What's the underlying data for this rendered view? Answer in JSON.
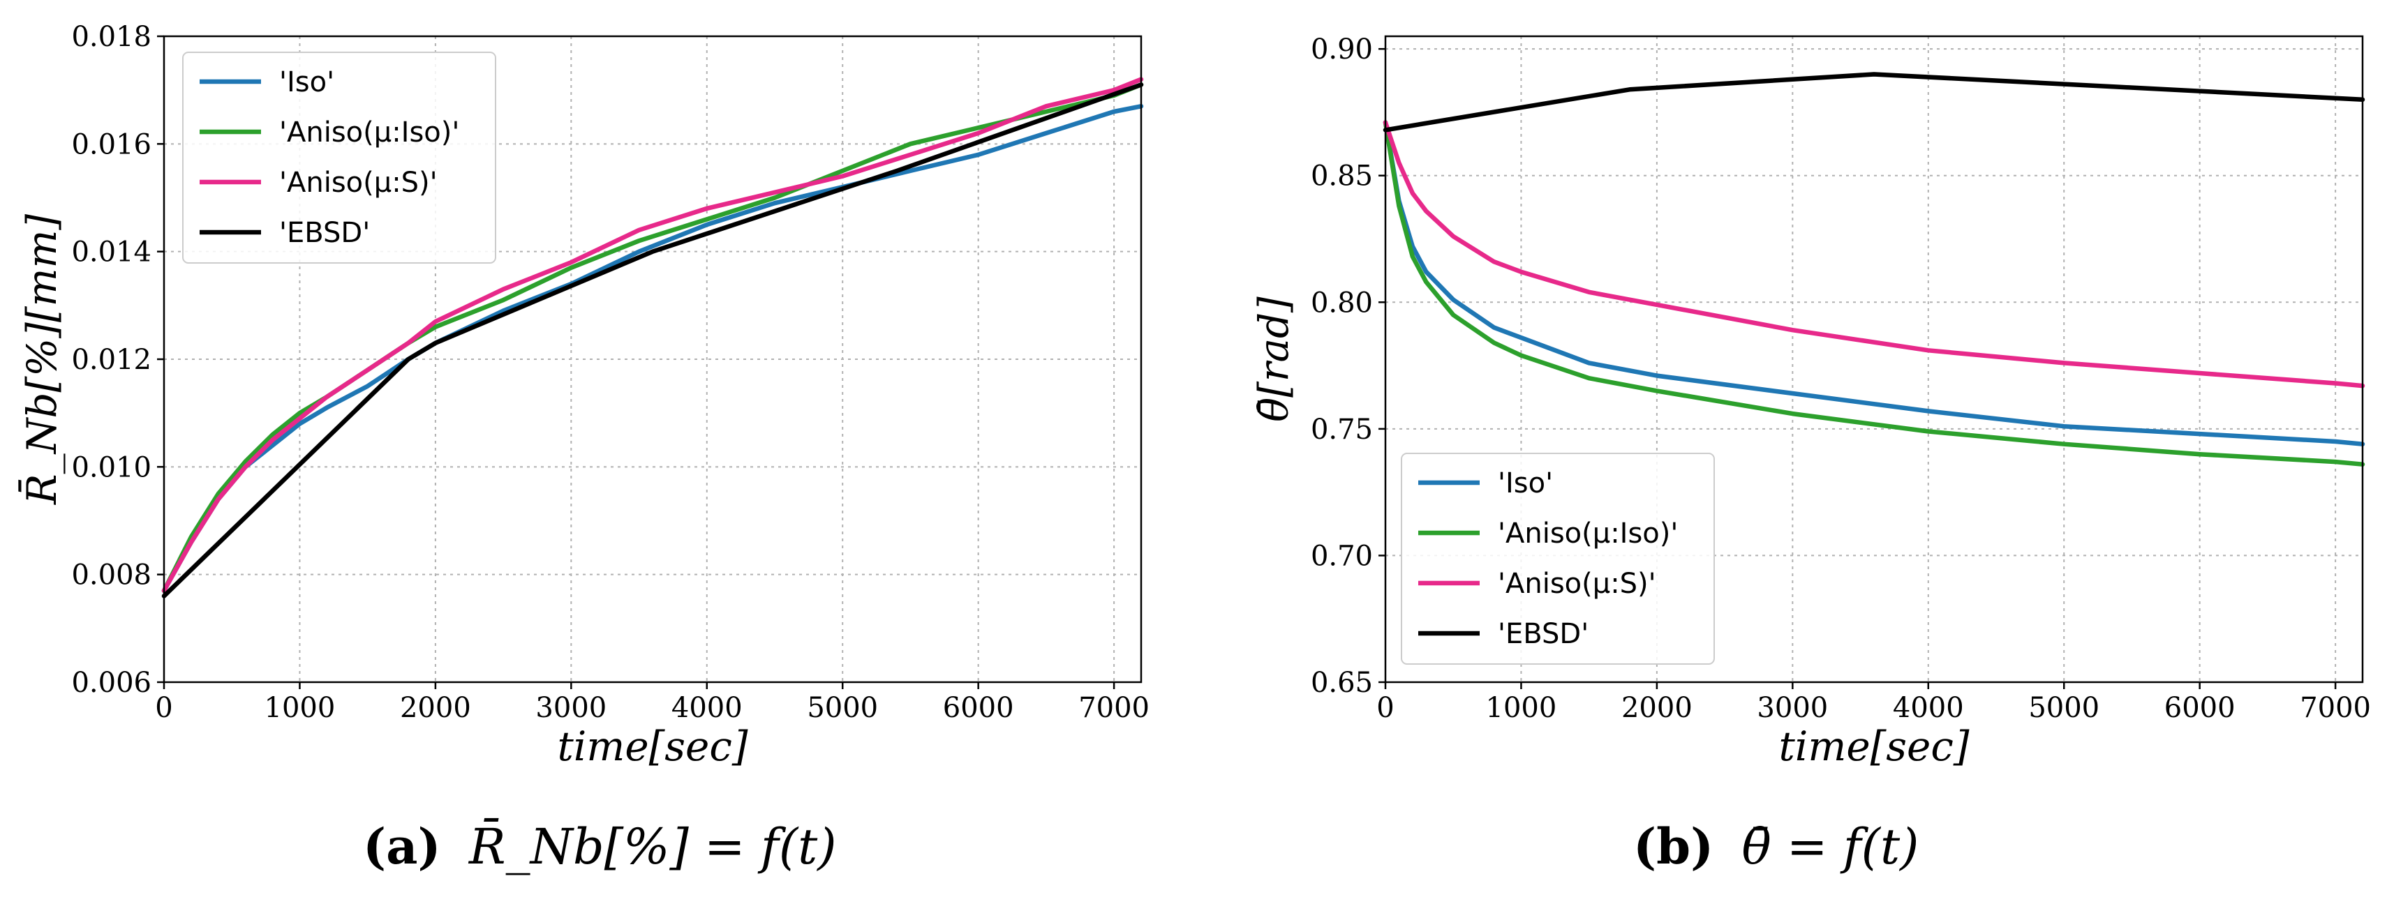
{
  "chart_data": [
    {
      "type": "line",
      "caption_label": "(a)",
      "caption_formula": "R̄_Nb[%] = f(t)",
      "xlabel": "time[sec]",
      "ylabel": "R̄_Nb[%][mm]",
      "xlim": [
        0,
        7200
      ],
      "ylim": [
        0.006,
        0.018
      ],
      "xticks": [
        0,
        1000,
        2000,
        3000,
        4000,
        5000,
        6000,
        7000
      ],
      "yticks": [
        0.006,
        0.008,
        0.01,
        0.012,
        0.014,
        0.016,
        0.018
      ],
      "ytick_decimals": 3,
      "grid": true,
      "legend_position": "upper-left",
      "series": [
        {
          "name": "'Iso'",
          "color": "#1f77b4",
          "x": [
            0,
            200,
            400,
            600,
            800,
            1000,
            1200,
            1500,
            1800,
            2000,
            2500,
            3000,
            3500,
            4000,
            4500,
            5000,
            5500,
            6000,
            6500,
            7000,
            7200
          ],
          "y": [
            0.0077,
            0.0086,
            0.0094,
            0.01,
            0.0104,
            0.0108,
            0.0111,
            0.0115,
            0.012,
            0.0123,
            0.0129,
            0.0134,
            0.014,
            0.0145,
            0.0149,
            0.0152,
            0.0155,
            0.0158,
            0.0162,
            0.0166,
            0.0167
          ]
        },
        {
          "name": "'Aniso(μ:Iso)'",
          "color": "#2ca02c",
          "x": [
            0,
            200,
            400,
            600,
            800,
            1000,
            1200,
            1500,
            1800,
            2000,
            2500,
            3000,
            3500,
            4000,
            4500,
            5000,
            5500,
            6000,
            6500,
            7000,
            7200
          ],
          "y": [
            0.0077,
            0.0087,
            0.0095,
            0.0101,
            0.0106,
            0.011,
            0.0113,
            0.0118,
            0.0123,
            0.0126,
            0.0131,
            0.0137,
            0.0142,
            0.0146,
            0.015,
            0.0155,
            0.016,
            0.0163,
            0.0166,
            0.0169,
            0.0171
          ]
        },
        {
          "name": "'Aniso(μ:S)'",
          "color": "#e7298a",
          "x": [
            0,
            200,
            400,
            600,
            800,
            1000,
            1200,
            1500,
            1800,
            2000,
            2500,
            3000,
            3500,
            4000,
            4500,
            5000,
            5500,
            6000,
            6500,
            7000,
            7200
          ],
          "y": [
            0.0077,
            0.0086,
            0.0094,
            0.01,
            0.0105,
            0.0109,
            0.0113,
            0.0118,
            0.0123,
            0.0127,
            0.0133,
            0.0138,
            0.0144,
            0.0148,
            0.0151,
            0.0154,
            0.0158,
            0.0162,
            0.0167,
            0.017,
            0.0172
          ]
        },
        {
          "name": "'EBSD'",
          "color": "#000000",
          "x": [
            0,
            1800,
            2000,
            3600,
            5400,
            7200
          ],
          "y": [
            0.0076,
            0.012,
            0.0123,
            0.014,
            0.0155,
            0.0171
          ]
        }
      ]
    },
    {
      "type": "line",
      "caption_label": "(b)",
      "caption_formula": "θ̄ = f(t)",
      "xlabel": "time[sec]",
      "ylabel": "θ̄[rad]",
      "xlim": [
        0,
        7200
      ],
      "ylim": [
        0.65,
        0.905
      ],
      "xticks": [
        0,
        1000,
        2000,
        3000,
        4000,
        5000,
        6000,
        7000
      ],
      "yticks": [
        0.65,
        0.7,
        0.75,
        0.8,
        0.85,
        0.9
      ],
      "ytick_decimals": 2,
      "grid": true,
      "legend_position": "lower-left",
      "series": [
        {
          "name": "'Iso'",
          "color": "#1f77b4",
          "x": [
            0,
            100,
            200,
            300,
            500,
            800,
            1000,
            1500,
            2000,
            3000,
            4000,
            5000,
            6000,
            7000,
            7200
          ],
          "y": [
            0.871,
            0.84,
            0.822,
            0.812,
            0.801,
            0.79,
            0.786,
            0.776,
            0.771,
            0.764,
            0.757,
            0.751,
            0.748,
            0.745,
            0.744
          ]
        },
        {
          "name": "'Aniso(μ:Iso)'",
          "color": "#2ca02c",
          "x": [
            0,
            100,
            200,
            300,
            500,
            800,
            1000,
            1500,
            2000,
            3000,
            4000,
            5000,
            6000,
            7000,
            7200
          ],
          "y": [
            0.871,
            0.838,
            0.818,
            0.808,
            0.795,
            0.784,
            0.779,
            0.77,
            0.765,
            0.756,
            0.749,
            0.744,
            0.74,
            0.737,
            0.736
          ]
        },
        {
          "name": "'Aniso(μ:S)'",
          "color": "#e7298a",
          "x": [
            0,
            100,
            200,
            300,
            500,
            800,
            1000,
            1500,
            2000,
            3000,
            4000,
            5000,
            6000,
            7000,
            7200
          ],
          "y": [
            0.871,
            0.855,
            0.843,
            0.836,
            0.826,
            0.816,
            0.812,
            0.804,
            0.799,
            0.789,
            0.781,
            0.776,
            0.772,
            0.768,
            0.767
          ]
        },
        {
          "name": "'EBSD'",
          "color": "#000000",
          "x": [
            0,
            1800,
            3600,
            5400,
            7200
          ],
          "y": [
            0.868,
            0.884,
            0.89,
            0.885,
            0.88
          ]
        }
      ]
    }
  ]
}
